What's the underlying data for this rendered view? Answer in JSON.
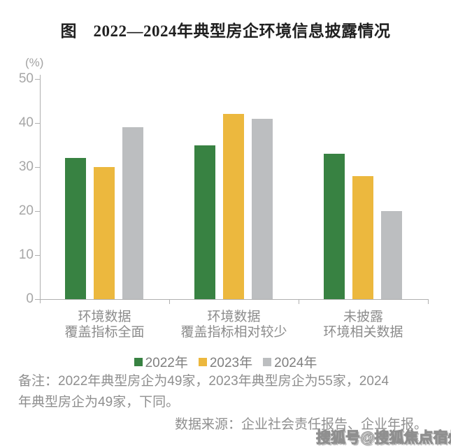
{
  "chart_data": {
    "type": "bar",
    "title": "图　2022—2024年典型房企环境信息披露情况",
    "unit_label": "(%)",
    "categories": [
      [
        "环境数据",
        "覆盖指标全面"
      ],
      [
        "环境数据",
        "覆盖指标相对较少"
      ],
      [
        "未披露",
        "环境相关数据"
      ]
    ],
    "series": [
      {
        "name": "2022年",
        "color": "#388242",
        "values": [
          32,
          35,
          33
        ]
      },
      {
        "name": "2023年",
        "color": "#ecb83e",
        "values": [
          30,
          42,
          28
        ]
      },
      {
        "name": "2024年",
        "color": "#bcbec0",
        "values": [
          39,
          41,
          20
        ]
      }
    ],
    "ylim": [
      0,
      50
    ],
    "yticks": [
      0,
      10,
      20,
      30,
      40,
      50
    ],
    "grid": false,
    "legend_position": "bottom",
    "axis_color": "#b0b0b0",
    "tick_label_color": "#a6a6a6"
  },
  "notes": {
    "remark_line1": "备注：2022年典型房企为49家，2023年典型房企为55家，2024",
    "remark_line2": "年典型房企为49家，下同。",
    "source": "数据来源：企业社会责任报告、企业年报。"
  },
  "watermark": "搜狐号@搜狐焦点宿州站"
}
